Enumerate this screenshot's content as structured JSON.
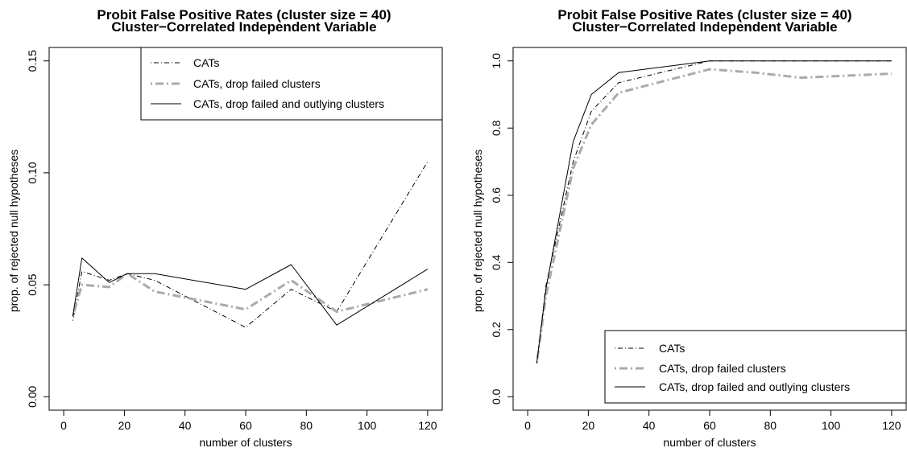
{
  "chart_data": [
    {
      "type": "line",
      "title": "Probit False Positive Rates (cluster size = 40)",
      "subtitle": "Cluster−Correlated Independent Variable",
      "xlabel": "number of clusters",
      "ylabel": "prop. of rejected null hypotheses",
      "xlim": [
        0,
        120
      ],
      "ylim": [
        0,
        0.15
      ],
      "xticks": [
        "0",
        "20",
        "40",
        "60",
        "80",
        "100",
        "120"
      ],
      "yticks": [
        "0.00",
        "0.05",
        "0.10",
        "0.15"
      ],
      "legend_position": "top-right",
      "x": [
        3,
        6,
        15,
        21,
        30,
        60,
        75,
        90,
        120
      ],
      "series": [
        {
          "name": "CATs",
          "style": "dotdash",
          "color": "#000000",
          "values": [
            0.034,
            0.056,
            0.052,
            0.055,
            0.052,
            0.031,
            0.048,
            0.038,
            0.105
          ]
        },
        {
          "name": "CATs, drop failed clusters",
          "style": "dashed-thick",
          "color": "#aaaaaa",
          "values": [
            0.036,
            0.05,
            0.049,
            0.055,
            0.047,
            0.039,
            0.052,
            0.038,
            0.048
          ]
        },
        {
          "name": "CATs, drop failed and outlying clusters",
          "style": "solid",
          "color": "#000000",
          "values": [
            0.036,
            0.062,
            0.051,
            0.055,
            0.055,
            0.048,
            0.059,
            0.032,
            0.057
          ]
        }
      ]
    },
    {
      "type": "line",
      "title": "Probit False Positive Rates (cluster size = 40)",
      "subtitle": "Cluster−Correlated Independent Variable",
      "xlabel": "number of clusters",
      "ylabel": "prop. of rejected null hypotheses",
      "xlim": [
        0,
        120
      ],
      "ylim": [
        0,
        1
      ],
      "xticks": [
        "0",
        "20",
        "40",
        "60",
        "80",
        "100",
        "120"
      ],
      "yticks": [
        "0.0",
        "0.2",
        "0.4",
        "0.6",
        "0.8",
        "1.0"
      ],
      "legend_position": "bottom-right",
      "x": [
        3,
        6,
        15,
        21,
        30,
        60,
        75,
        90,
        120
      ],
      "series": [
        {
          "name": "CATs",
          "style": "dotdash",
          "color": "#000000",
          "values": [
            0.1,
            0.33,
            0.7,
            0.85,
            0.935,
            1.0,
            1.0,
            1.0,
            1.0
          ]
        },
        {
          "name": "CATs, drop failed clusters",
          "style": "dashed-thick",
          "color": "#aaaaaa",
          "values": [
            0.1,
            0.3,
            0.68,
            0.81,
            0.905,
            0.975,
            0.965,
            0.95,
            0.962
          ]
        },
        {
          "name": "CATs, drop failed and outlying clusters",
          "style": "solid",
          "color": "#000000",
          "values": [
            0.1,
            0.32,
            0.76,
            0.9,
            0.965,
            1.0,
            1.0,
            1.0,
            1.0
          ]
        }
      ]
    }
  ]
}
